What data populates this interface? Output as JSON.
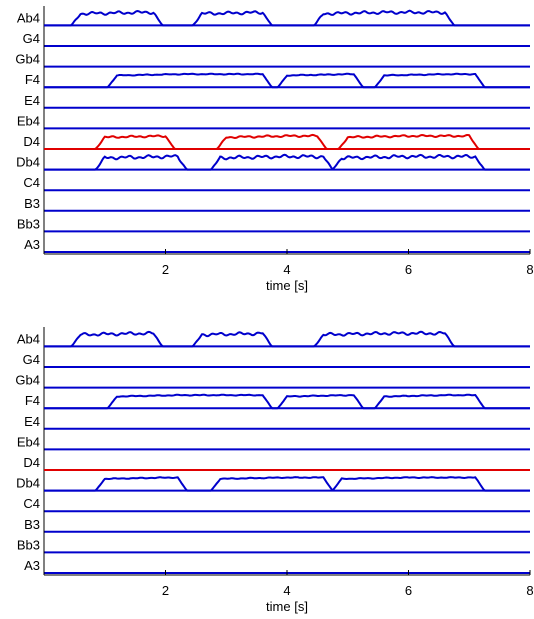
{
  "colors": {
    "blue": "#0000cc",
    "red": "#e00000",
    "axis": "#000000"
  },
  "chart_data": [
    {
      "type": "line",
      "title": "",
      "xlabel": "time [s]",
      "ylabel": "",
      "xlim": [
        0,
        8
      ],
      "xticks": [
        2,
        4,
        6,
        8
      ],
      "categories": [
        "A3",
        "Bb3",
        "B3",
        "C4",
        "Db4",
        "D4",
        "Eb4",
        "E4",
        "F4",
        "Gb4",
        "G4",
        "Ab4"
      ],
      "series": [
        {
          "color": "blue",
          "note": "Ab4",
          "segments": [
            [
              0.6,
              1.8
            ],
            [
              2.6,
              3.6
            ],
            [
              4.6,
              6.6
            ]
          ],
          "ripple": 0.55
        },
        {
          "color": "blue",
          "note": "F4",
          "segments": [
            [
              1.2,
              3.6
            ],
            [
              4.0,
              5.1
            ],
            [
              5.6,
              7.1
            ]
          ],
          "ripple": 0.15
        },
        {
          "color": "blue",
          "note": "Db4",
          "segments": [
            [
              1.0,
              2.2
            ],
            [
              2.9,
              4.6
            ],
            [
              4.9,
              7.1
            ]
          ],
          "ripple": 0.6
        },
        {
          "color": "red",
          "note": "D4",
          "segments": [
            [
              1.0,
              2.0
            ],
            [
              3.0,
              4.5
            ],
            [
              5.0,
              7.0
            ]
          ],
          "ripple": 0.35
        }
      ]
    },
    {
      "type": "line",
      "title": "",
      "xlabel": "time [s]",
      "ylabel": "",
      "xlim": [
        0,
        8
      ],
      "xticks": [
        2,
        4,
        6,
        8
      ],
      "categories": [
        "A3",
        "Bb3",
        "B3",
        "C4",
        "Db4",
        "D4",
        "Eb4",
        "E4",
        "F4",
        "Gb4",
        "G4",
        "Ab4"
      ],
      "series": [
        {
          "color": "blue",
          "note": "Ab4",
          "segments": [
            [
              0.6,
              1.8
            ],
            [
              2.6,
              3.6
            ],
            [
              4.6,
              6.6
            ]
          ],
          "ripple": 0.55
        },
        {
          "color": "blue",
          "note": "F4",
          "segments": [
            [
              1.2,
              3.6
            ],
            [
              4.0,
              5.1
            ],
            [
              5.6,
              7.1
            ]
          ],
          "ripple": 0.15
        },
        {
          "color": "blue",
          "note": "Db4",
          "segments": [
            [
              1.0,
              2.2
            ],
            [
              2.9,
              4.6
            ],
            [
              4.9,
              7.1
            ]
          ],
          "ripple": 0.15
        },
        {
          "color": "red",
          "note": "D4",
          "segments": [],
          "ripple": 0
        }
      ]
    }
  ]
}
